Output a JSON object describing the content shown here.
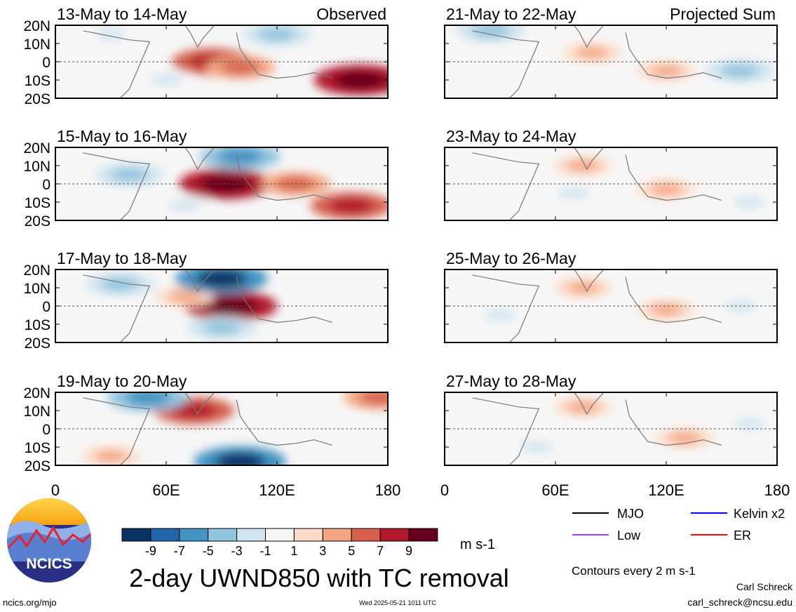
{
  "chart_data": {
    "type": "heatmap",
    "title": "2-day UWND850 with TC removal",
    "variable": "850 hPa zonal wind anomaly (TC removed)",
    "columns": [
      {
        "header": "Observed",
        "panels": [
          {
            "label": "13-May to 14-May",
            "centers": [
              {
                "lon": 85,
                "lat": 0,
                "value": 7
              },
              {
                "lon": 100,
                "lat": -3,
                "value": 5
              },
              {
                "lon": 165,
                "lat": -10,
                "value": 9
              },
              {
                "lon": 30,
                "lat": 15,
                "value": -3
              },
              {
                "lon": 120,
                "lat": 15,
                "value": -5
              },
              {
                "lon": 60,
                "lat": -10,
                "value": -3
              }
            ]
          },
          {
            "label": "15-May to 16-May",
            "centers": [
              {
                "lon": 92,
                "lat": 0,
                "value": 9
              },
              {
                "lon": 130,
                "lat": 0,
                "value": 5
              },
              {
                "lon": 160,
                "lat": -12,
                "value": 7
              },
              {
                "lon": 100,
                "lat": 15,
                "value": -7
              },
              {
                "lon": 40,
                "lat": 5,
                "value": -5
              },
              {
                "lon": 70,
                "lat": -12,
                "value": -3
              }
            ]
          },
          {
            "label": "17-May to 18-May",
            "centers": [
              {
                "lon": 95,
                "lat": 0,
                "value": 9
              },
              {
                "lon": 70,
                "lat": 5,
                "value": 3
              },
              {
                "lon": 90,
                "lat": 15,
                "value": -9
              },
              {
                "lon": 35,
                "lat": 12,
                "value": -5
              },
              {
                "lon": 90,
                "lat": -12,
                "value": -5
              }
            ]
          },
          {
            "label": "19-May to 20-May",
            "centers": [
              {
                "lon": 75,
                "lat": 10,
                "value": 7
              },
              {
                "lon": 175,
                "lat": 17,
                "value": 5
              },
              {
                "lon": 50,
                "lat": 17,
                "value": -7
              },
              {
                "lon": 100,
                "lat": -18,
                "value": -9
              },
              {
                "lon": 30,
                "lat": -15,
                "value": 3
              }
            ]
          }
        ]
      },
      {
        "header": "Projected Sum",
        "panels": [
          {
            "label": "21-May to 22-May",
            "centers": [
              {
                "lon": 80,
                "lat": 5,
                "value": 3
              },
              {
                "lon": 120,
                "lat": -5,
                "value": 3
              },
              {
                "lon": 160,
                "lat": -5,
                "value": -5
              },
              {
                "lon": 25,
                "lat": 17,
                "value": -5
              }
            ]
          },
          {
            "label": "23-May to 24-May",
            "centers": [
              {
                "lon": 75,
                "lat": 10,
                "value": 3
              },
              {
                "lon": 120,
                "lat": -3,
                "value": 3
              },
              {
                "lon": 165,
                "lat": -10,
                "value": -3
              },
              {
                "lon": 70,
                "lat": -5,
                "value": -3
              }
            ]
          },
          {
            "label": "25-May to 26-May",
            "centers": [
              {
                "lon": 75,
                "lat": 10,
                "value": 3
              },
              {
                "lon": 120,
                "lat": -2,
                "value": 3
              },
              {
                "lon": 160,
                "lat": 0,
                "value": -3
              },
              {
                "lon": 30,
                "lat": -5,
                "value": -3
              }
            ]
          },
          {
            "label": "27-May to 28-May",
            "centers": [
              {
                "lon": 75,
                "lat": 12,
                "value": 3
              },
              {
                "lon": 130,
                "lat": -5,
                "value": 3
              },
              {
                "lon": 165,
                "lat": 3,
                "value": -3
              },
              {
                "lon": 50,
                "lat": -10,
                "value": -3
              }
            ]
          }
        ]
      }
    ],
    "x_ticks": [
      "0",
      "60E",
      "120E",
      "180"
    ],
    "y_ticks": [
      "20N",
      "10N",
      "0",
      "10S",
      "20S"
    ],
    "xlim": [
      0,
      180
    ],
    "ylim": [
      -20,
      20
    ],
    "colorbar": {
      "ticks": [
        "-9",
        "-7",
        "-5",
        "-3",
        "-1",
        "1",
        "3",
        "5",
        "7",
        "9"
      ],
      "colors": [
        "#0b3361",
        "#2166ac",
        "#4393c3",
        "#92c5de",
        "#d1e5f0",
        "#f7f7f7",
        "#fddbc7",
        "#f4a582",
        "#d6604d",
        "#b2182b",
        "#67001f"
      ],
      "units": "m s-1"
    },
    "legend": {
      "position": "bottom-right",
      "entries": [
        {
          "name": "MJO",
          "color": "#000000"
        },
        {
          "name": "Kelvin x2",
          "color": "#0000ff"
        },
        {
          "name": "Low",
          "color": "#a040ff"
        },
        {
          "name": "ER",
          "color": "#ff0000"
        }
      ],
      "note": "Contours every 2 m s-1"
    }
  },
  "footer": {
    "logo_text": "NCICS",
    "website": "ncics.org/mjo",
    "timestamp": "Wed 2025-05-21 1011 UTC",
    "author": "Carl Schreck",
    "email": "carl_schreck@ncsu.edu"
  }
}
